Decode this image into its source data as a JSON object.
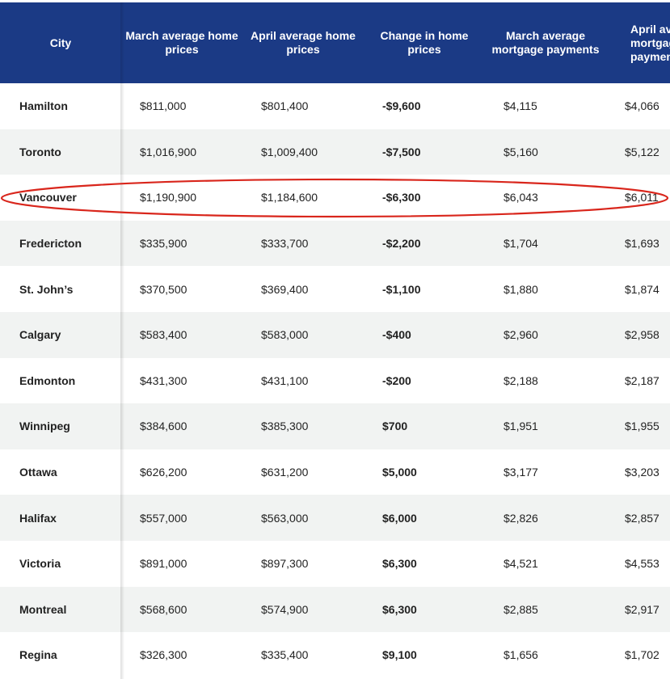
{
  "headers": [
    "City",
    "March average home prices",
    "April average home prices",
    "Change in home prices",
    "March average mortgage payments",
    "April average mortgage payments"
  ],
  "rows": [
    {
      "city": "Hamilton",
      "march_price": "$811,000",
      "april_price": "$801,400",
      "change": "-$9,600",
      "march_payment": "$4,115",
      "april_payment": "$4,066"
    },
    {
      "city": "Toronto",
      "march_price": "$1,016,900",
      "april_price": "$1,009,400",
      "change": "-$7,500",
      "march_payment": "$5,160",
      "april_payment": "$5,122"
    },
    {
      "city": "Vancouver",
      "march_price": "$1,190,900",
      "april_price": "$1,184,600",
      "change": "-$6,300",
      "march_payment": "$6,043",
      "april_payment": "$6,011"
    },
    {
      "city": "Fredericton",
      "march_price": "$335,900",
      "april_price": "$333,700",
      "change": "-$2,200",
      "march_payment": "$1,704",
      "april_payment": "$1,693"
    },
    {
      "city": "St. John’s",
      "march_price": "$370,500",
      "april_price": "$369,400",
      "change": "-$1,100",
      "march_payment": "$1,880",
      "april_payment": "$1,874"
    },
    {
      "city": "Calgary",
      "march_price": "$583,400",
      "april_price": "$583,000",
      "change": "-$400",
      "march_payment": "$2,960",
      "april_payment": "$2,958"
    },
    {
      "city": "Edmonton",
      "march_price": "$431,300",
      "april_price": "$431,100",
      "change": "-$200",
      "march_payment": "$2,188",
      "april_payment": "$2,187"
    },
    {
      "city": "Winnipeg",
      "march_price": "$384,600",
      "april_price": "$385,300",
      "change": "$700",
      "march_payment": "$1,951",
      "april_payment": "$1,955"
    },
    {
      "city": "Ottawa",
      "march_price": "$626,200",
      "april_price": "$631,200",
      "change": "$5,000",
      "march_payment": "$3,177",
      "april_payment": "$3,203"
    },
    {
      "city": "Halifax",
      "march_price": "$557,000",
      "april_price": "$563,000",
      "change": "$6,000",
      "march_payment": "$2,826",
      "april_payment": "$2,857"
    },
    {
      "city": "Victoria",
      "march_price": "$891,000",
      "april_price": "$897,300",
      "change": "$6,300",
      "march_payment": "$4,521",
      "april_payment": "$4,553"
    },
    {
      "city": "Montreal",
      "march_price": "$568,600",
      "april_price": "$574,900",
      "change": "$6,300",
      "march_payment": "$2,885",
      "april_payment": "$2,917"
    },
    {
      "city": "Regina",
      "march_price": "$326,300",
      "april_price": "$335,400",
      "change": "$9,100",
      "march_payment": "$1,656",
      "april_payment": "$1,702"
    }
  ],
  "colors": {
    "header_bg": "#1b3a85",
    "header_text": "#ffffff",
    "alt_row_bg": "#f1f3f2",
    "highlight_ellipse": "#d9261c"
  },
  "highlighted_city": "Vancouver"
}
